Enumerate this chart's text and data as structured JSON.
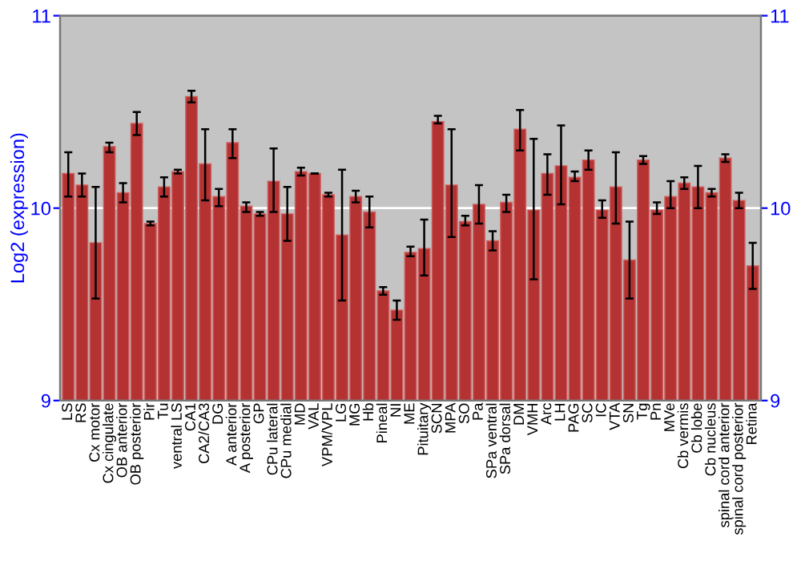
{
  "chart_data": {
    "type": "bar",
    "ylabel": "Log2 (expression)",
    "categories": [
      "LS",
      "RS",
      "Cx motor",
      "Cx cingulate",
      "OB anterior",
      "OB posterior",
      "Pir",
      "Tu",
      "ventral LS",
      "CA1",
      "CA2/CA3",
      "DG",
      "A anterior",
      "A posterior",
      "GP",
      "CPu lateral",
      "CPu medial",
      "MD",
      "VAL",
      "VPM/VPL",
      "LG",
      "MG",
      "Hb",
      "Pineal",
      "NI",
      "ME",
      "Pituitary",
      "SCN",
      "MPA",
      "SO",
      "Pa",
      "SPa ventral",
      "SPa dorsal",
      "DM",
      "VMH",
      "Arc",
      "LH",
      "PAG",
      "SC",
      "IC",
      "VTA",
      "SN",
      "Tg",
      "Pn",
      "MVe",
      "Cb vermis",
      "Cb lobe",
      "Cb nucleus",
      "spinal cord anterior",
      "spinal cord posterior",
      "Retina"
    ],
    "values": [
      10.18,
      10.12,
      9.82,
      10.32,
      10.08,
      10.44,
      9.92,
      10.11,
      10.19,
      10.58,
      10.23,
      10.06,
      10.34,
      10.01,
      9.97,
      10.14,
      9.97,
      10.19,
      10.18,
      10.07,
      9.86,
      10.06,
      9.98,
      9.57,
      9.47,
      9.77,
      9.79,
      10.45,
      10.12,
      9.93,
      10.02,
      9.83,
      10.03,
      10.41,
      9.99,
      10.18,
      10.22,
      10.16,
      10.25,
      9.99,
      10.11,
      9.73,
      10.25,
      9.99,
      10.06,
      10.13,
      10.11,
      10.08,
      10.26,
      10.04,
      9.7
    ],
    "errors": [
      [
        10.06,
        10.29
      ],
      [
        10.06,
        10.18
      ],
      [
        9.53,
        10.11
      ],
      [
        10.29,
        10.34
      ],
      [
        10.03,
        10.13
      ],
      [
        10.38,
        10.5
      ],
      [
        9.91,
        9.93
      ],
      [
        10.06,
        10.16
      ],
      [
        10.18,
        10.2
      ],
      [
        10.55,
        10.61
      ],
      [
        10.04,
        10.41
      ],
      [
        10.01,
        10.1
      ],
      [
        10.26,
        10.41
      ],
      [
        9.98,
        10.03
      ],
      [
        9.96,
        9.98
      ],
      [
        9.98,
        10.31
      ],
      [
        9.83,
        10.11
      ],
      [
        10.17,
        10.21
      ],
      [
        10.18,
        10.18
      ],
      [
        10.06,
        10.08
      ],
      [
        9.52,
        10.2
      ],
      [
        10.03,
        10.09
      ],
      [
        9.9,
        10.06
      ],
      [
        9.55,
        9.59
      ],
      [
        9.42,
        9.52
      ],
      [
        9.75,
        9.8
      ],
      [
        9.65,
        9.94
      ],
      [
        10.44,
        10.48
      ],
      [
        9.85,
        10.41
      ],
      [
        9.91,
        9.96
      ],
      [
        9.92,
        10.12
      ],
      [
        9.78,
        9.88
      ],
      [
        9.98,
        10.07
      ],
      [
        10.3,
        10.51
      ],
      [
        9.63,
        10.36
      ],
      [
        10.07,
        10.28
      ],
      [
        10.02,
        10.43
      ],
      [
        10.14,
        10.19
      ],
      [
        10.2,
        10.3
      ],
      [
        9.95,
        10.04
      ],
      [
        9.92,
        10.29
      ],
      [
        9.53,
        9.93
      ],
      [
        10.23,
        10.27
      ],
      [
        9.97,
        10.03
      ],
      [
        10.0,
        10.14
      ],
      [
        10.1,
        10.16
      ],
      [
        10.0,
        10.22
      ],
      [
        10.06,
        10.1
      ],
      [
        10.24,
        10.28
      ],
      [
        10.0,
        10.08
      ],
      [
        9.58,
        9.82
      ]
    ],
    "color": "#b53232",
    "ylim": [
      9,
      11
    ],
    "yticks": [
      9,
      10,
      11
    ],
    "y2lim": [
      9,
      11
    ],
    "y2ticks": [
      9,
      10,
      11
    ],
    "grid": "y"
  }
}
